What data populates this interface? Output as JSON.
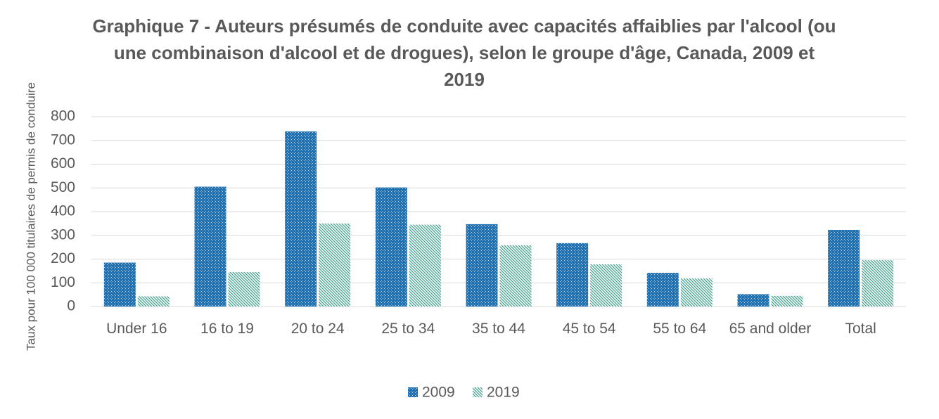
{
  "chart_data": {
    "type": "bar",
    "title": "Graphique 7 - Auteurs présumés de conduite avec capacités affaiblies par l'alcool (ou une combinaison d'alcool et de drogues), selon le groupe d'âge, Canada, 2009 et 2019",
    "y_label": "Taux pour 100 000 titulaires de permis de conduire",
    "categories": [
      "Under 16",
      "16 to 19",
      "20 to 24",
      "25 to 34",
      "35 to 44",
      "45 to 54",
      "55 to 64",
      "65 and older",
      "Total"
    ],
    "series": [
      {
        "name": "2009",
        "color": "#1a72b8",
        "values": [
          185,
          505,
          738,
          502,
          347,
          267,
          142,
          52,
          323
        ]
      },
      {
        "name": "2019",
        "color": "#3fa08e",
        "values": [
          43,
          145,
          350,
          345,
          258,
          178,
          118,
          45,
          195
        ]
      }
    ],
    "ylim": [
      0,
      800
    ],
    "yticks": [
      0,
      100,
      200,
      300,
      400,
      500,
      600,
      700,
      800
    ],
    "grid": true,
    "legend": "bottom"
  }
}
